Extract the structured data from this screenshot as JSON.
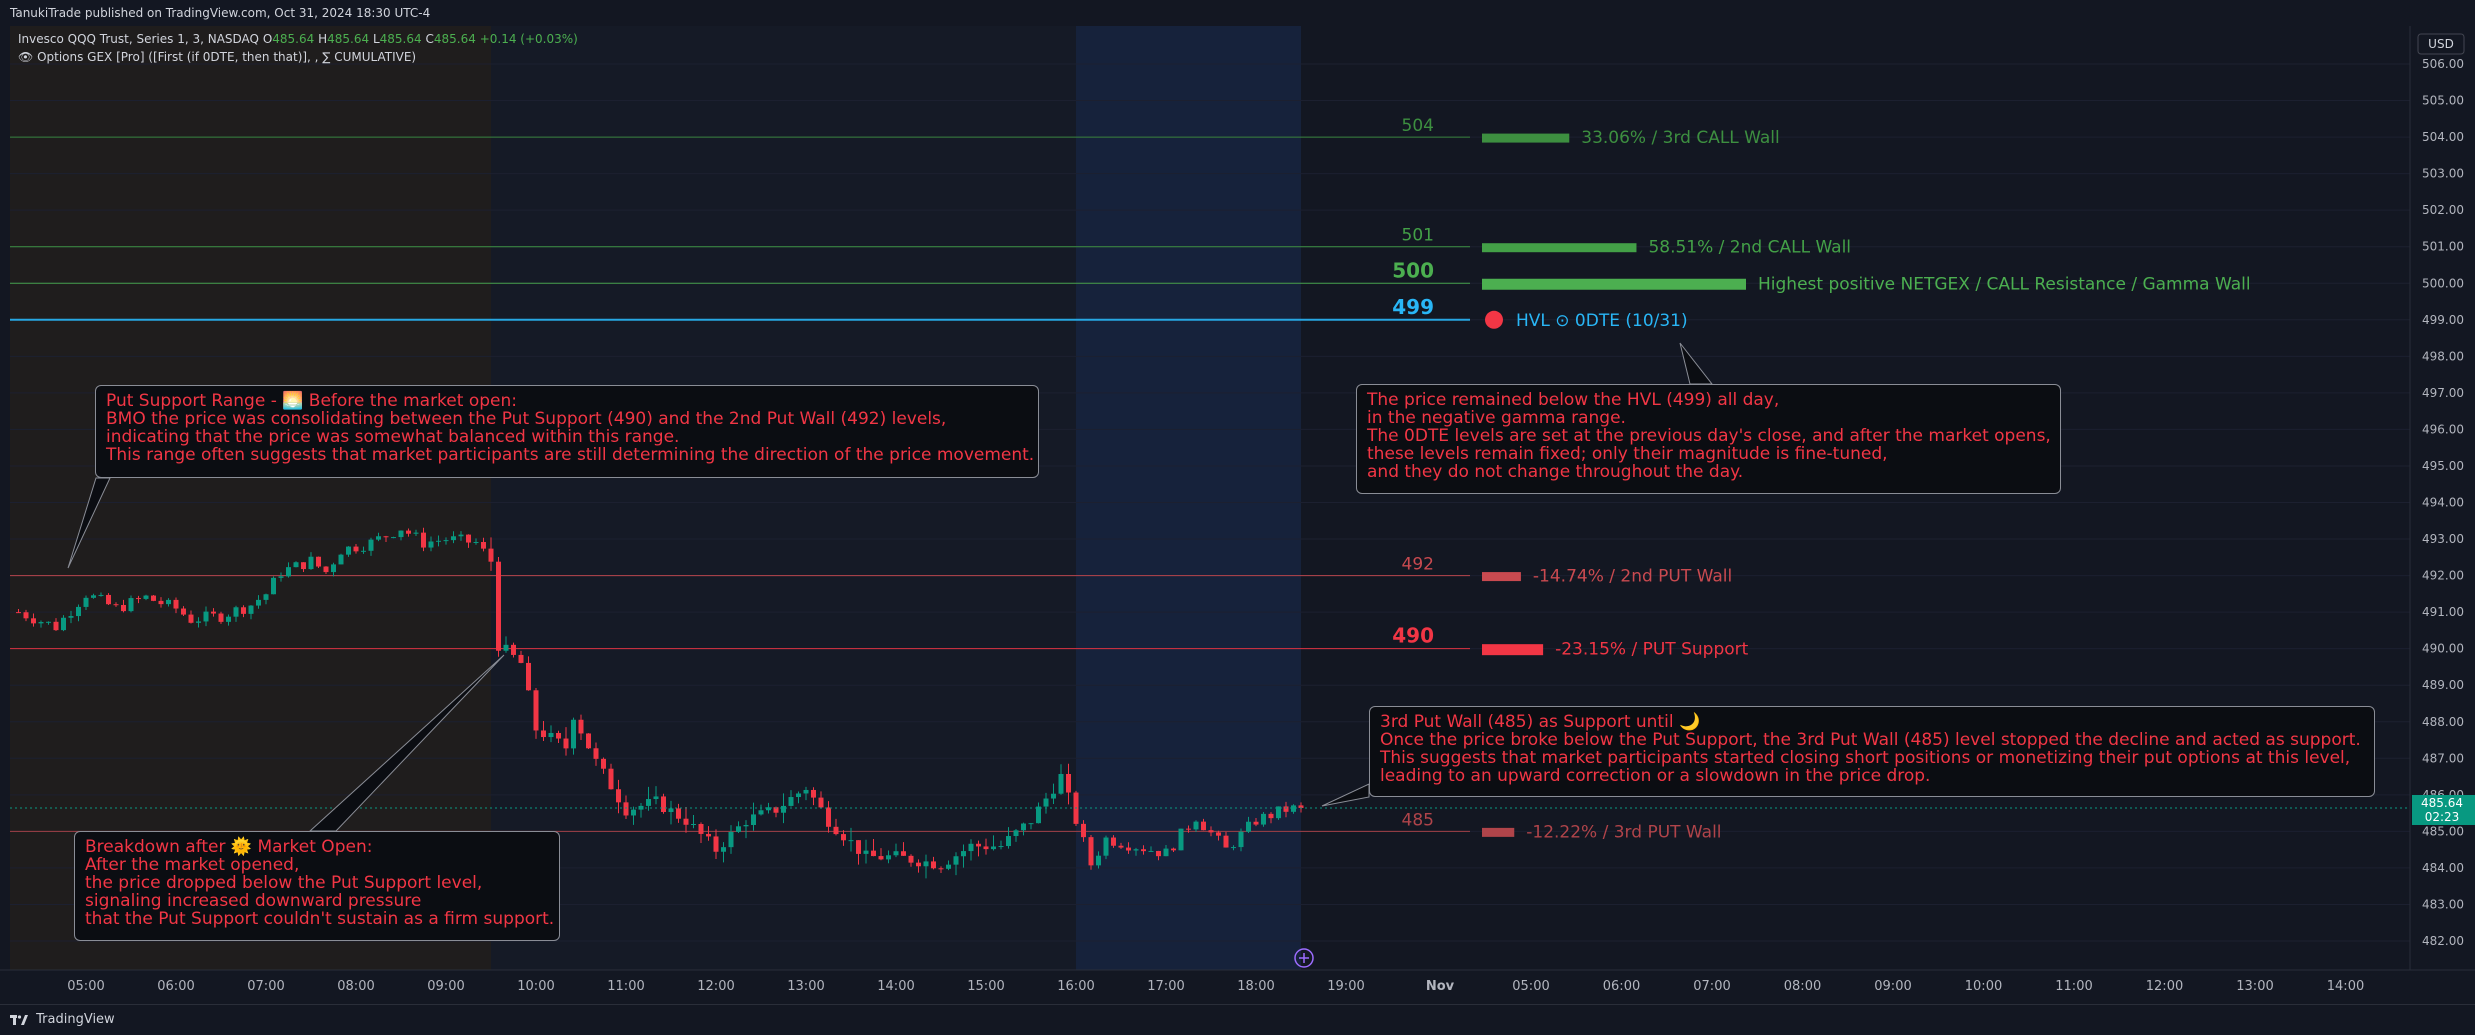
{
  "header": {
    "published": "TanukiTrade published on TradingView.com, Oct 31, 2024 18:30 UTC-4",
    "symbol": "Invesco QQQ Trust, Series 1, 3, NASDAQ",
    "ohlc": {
      "o_label": "O",
      "o": "485.64",
      "h_label": "H",
      "h": "485.64",
      "l_label": "L",
      "l": "485.64",
      "c_label": "C",
      "c": "485.64",
      "change": "+0.14 (+0.03%)"
    },
    "indicator": "Options GEX [Pro] ([First (if 0DTE, then that)], , ∑ CUMULATIVE)"
  },
  "price_axis": {
    "currency": "USD",
    "ticks": [
      "506.00",
      "505.00",
      "504.00",
      "503.00",
      "502.00",
      "501.00",
      "500.00",
      "499.00",
      "498.00",
      "497.00",
      "496.00",
      "495.00",
      "494.00",
      "493.00",
      "492.00",
      "491.00",
      "490.00",
      "489.00",
      "488.00",
      "487.00",
      "486.00",
      "485.00",
      "484.00",
      "483.00",
      "482.00"
    ],
    "last_price": "485.64",
    "countdown": "02:23"
  },
  "time_axis": {
    "labels": [
      "05:00",
      "06:00",
      "07:00",
      "08:00",
      "09:00",
      "10:00",
      "11:00",
      "12:00",
      "13:00",
      "14:00",
      "15:00",
      "16:00",
      "17:00",
      "18:00",
      "19:00",
      "Nov",
      "05:00",
      "06:00",
      "07:00",
      "08:00",
      "09:00",
      "10:00",
      "11:00",
      "12:00",
      "13:00",
      "14:00"
    ]
  },
  "levels": [
    {
      "price": 504,
      "label": "504",
      "bar_text": "33.06% / 3rd CALL Wall",
      "pct": 33.06,
      "color": "#3d8f40",
      "bold": false
    },
    {
      "price": 501,
      "label": "501",
      "bar_text": "58.51% / 2nd CALL Wall",
      "pct": 58.51,
      "color": "#43a047",
      "bold": false
    },
    {
      "price": 500,
      "label": "500",
      "bar_text": "Highest positive NETGEX / CALL Resistance / Gamma Wall",
      "pct": 100,
      "color": "#4caf50",
      "bold": true
    },
    {
      "price": 499,
      "label": "499",
      "bar_text": "HVL ⊙ 0DTE (10/31)",
      "pct": 0,
      "color": "#29b6f6",
      "bold": true
    },
    {
      "price": 492,
      "label": "492",
      "bar_text": "-14.74% / 2nd PUT Wall",
      "pct": -14.74,
      "color": "#c94a50",
      "bold": false
    },
    {
      "price": 490,
      "label": "490",
      "bar_text": "-23.15% / PUT Support",
      "pct": -23.15,
      "color": "#f23645",
      "bold": true
    },
    {
      "price": 485,
      "label": "485",
      "bar_text": "-12.22% / 3rd PUT Wall",
      "pct": -12.22,
      "color": "#b0444a",
      "bold": false
    }
  ],
  "annotations": {
    "put_support_range": "Put Support Range - 🌅 Before the market open:\nBMO the price was consolidating between the Put Support (490) and the 2nd Put Wall (492) levels,\nindicating that the price was somewhat balanced within this range.\nThis range often suggests that market participants are still determining the direction of the price movement.",
    "hvl_note": "The price remained below the HVL (499) all day,\nin the negative gamma range.\nThe 0DTE levels are set at the previous day's close, and after the market opens,\nthese levels remain fixed; only their magnitude is fine-tuned,\nand they do not change throughout the day.",
    "third_put_wall": "3rd Put Wall (485) as Support until 🌙\nOnce the price broke below the Put Support, the 3rd Put Wall (485) level stopped the decline and acted as support.\nThis suggests that market participants started closing short positions or monetizing their put options at this level,\nleading to an upward correction or a slowdown in the price drop.",
    "breakdown": "Breakdown after 🌞 Market Open:\nAfter the market opened,\nthe price dropped below the Put Support level,\nsignaling increased downward pressure\nthat the Put Support couldn't sustain as a firm support."
  },
  "footer": {
    "brand": "TradingView"
  },
  "colors": {
    "bg": "#131722",
    "premarket": "#1f1d1d",
    "regular": "#151a26",
    "afterhours": "#16223b",
    "up": "#089981",
    "down": "#f23645",
    "hvl": "#29b6f6"
  },
  "chart_data": {
    "type": "candlestick",
    "timeframe_minutes": 5,
    "ylim": [
      481.5,
      506.5
    ],
    "time_range": [
      "04:10",
      "14:45"
    ],
    "anchors": [
      [
        "04:15",
        491.0
      ],
      [
        "04:40",
        490.6
      ],
      [
        "05:00",
        491.5
      ],
      [
        "05:20",
        491.1
      ],
      [
        "05:40",
        491.4
      ],
      [
        "06:00",
        491.1
      ],
      [
        "06:10",
        490.8
      ],
      [
        "06:30",
        490.9
      ],
      [
        "06:50",
        491.2
      ],
      [
        "07:00",
        491.5
      ],
      [
        "07:10",
        492.1
      ],
      [
        "07:30",
        492.4
      ],
      [
        "07:40",
        492.1
      ],
      [
        "07:50",
        492.7
      ],
      [
        "08:10",
        492.9
      ],
      [
        "08:30",
        493.3
      ],
      [
        "08:45",
        492.9
      ],
      [
        "09:00",
        493.0
      ],
      [
        "09:20",
        492.9
      ],
      [
        "09:30",
        492.4
      ],
      [
        "09:35",
        490.1
      ],
      [
        "09:50",
        489.6
      ],
      [
        "10:00",
        487.8
      ],
      [
        "10:20",
        487.3
      ],
      [
        "10:25",
        488.2
      ],
      [
        "10:40",
        486.9
      ],
      [
        "11:00",
        485.6
      ],
      [
        "11:20",
        485.8
      ],
      [
        "11:40",
        485.3
      ],
      [
        "12:00",
        484.5
      ],
      [
        "12:20",
        485.3
      ],
      [
        "12:40",
        485.6
      ],
      [
        "13:00",
        486.2
      ],
      [
        "13:15",
        485.3
      ],
      [
        "13:40",
        484.3
      ],
      [
        "14:00",
        484.3
      ],
      [
        "14:30",
        484.1
      ],
      [
        "14:50",
        484.6
      ],
      [
        "15:10",
        484.6
      ],
      [
        "15:30",
        485.3
      ],
      [
        "15:50",
        486.5
      ],
      [
        "16:00",
        485.3
      ],
      [
        "16:10",
        484.1
      ],
      [
        "16:20",
        484.8
      ],
      [
        "16:40",
        484.6
      ],
      [
        "17:00",
        484.4
      ],
      [
        "17:20",
        485.4
      ],
      [
        "17:40",
        484.5
      ],
      [
        "18:00",
        485.3
      ],
      [
        "18:20",
        485.6
      ],
      [
        "18:30",
        485.64
      ]
    ]
  }
}
